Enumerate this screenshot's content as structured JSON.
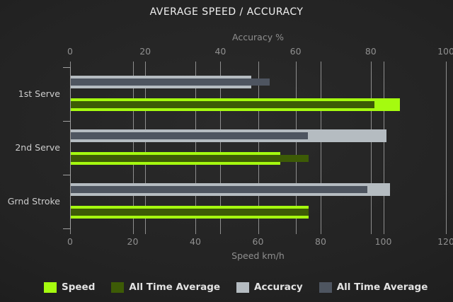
{
  "title": "AVERAGE SPEED / ACCURACY",
  "chart_data": {
    "type": "bar",
    "orientation": "horizontal",
    "grid": true,
    "legend_position": "bottom",
    "categories": [
      "1st Serve",
      "2nd Serve",
      "Grnd Stroke"
    ],
    "series": [
      {
        "name": "Speed",
        "axis": "bottom",
        "color": "#a5fb0f",
        "values": [
          105,
          67,
          76
        ]
      },
      {
        "name": "All Time Average",
        "axis": "bottom",
        "color": "#3d5b06",
        "values": [
          97,
          76,
          76
        ]
      },
      {
        "name": "Accuracy",
        "axis": "top",
        "color": "#b5bcc1",
        "values": [
          48,
          84,
          85
        ]
      },
      {
        "name": "All Time Average",
        "axis": "top",
        "color": "#4e5560",
        "values": [
          53,
          63,
          79
        ]
      }
    ],
    "axes": {
      "top": {
        "label": "Accuracy %",
        "min": 0,
        "max": 100,
        "ticks": [
          0,
          20,
          40,
          60,
          80,
          100
        ]
      },
      "bottom": {
        "label": "Speed km/h",
        "min": 0,
        "max": 120,
        "ticks": [
          0,
          20,
          40,
          60,
          80,
          100,
          120
        ]
      }
    },
    "text_color": "#f0f0f0",
    "muted_text_color": "#8f8f8f",
    "gridline_color": "#8e8e8e"
  }
}
